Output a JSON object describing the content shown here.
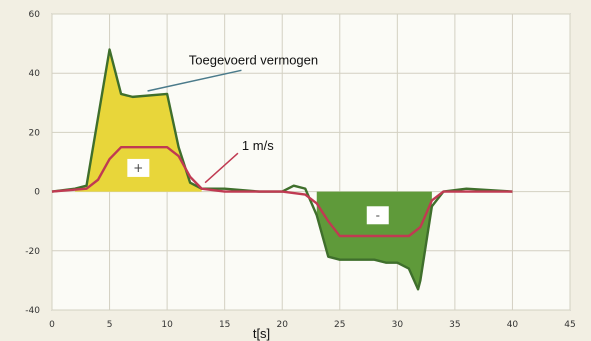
{
  "chart_data": {
    "type": "line",
    "xlabel": "t[s]",
    "ylabel": "",
    "xlim": [
      0,
      45
    ],
    "ylim": [
      -40,
      60
    ],
    "x_ticks": [
      "0",
      "5",
      "10",
      "15",
      "20",
      "25",
      "30",
      "35",
      "40",
      "45"
    ],
    "y_ticks": [
      "60",
      "40",
      "20",
      "0",
      "-20",
      "-40"
    ],
    "grid": true,
    "annotations": [
      {
        "text": "Toegevoerd vermogen",
        "x": 17.5,
        "y": 43
      },
      {
        "text": "1 m/s",
        "x": 16.5,
        "y": 14
      }
    ],
    "box_labels": [
      {
        "text": "+",
        "x": 7.5,
        "y": 8
      },
      {
        "text": "-",
        "x": 28.3,
        "y": -8
      }
    ],
    "series": [
      {
        "color": "#3f6f2c",
        "x": [
          0,
          2,
          3,
          5,
          6,
          7,
          10,
          11,
          12,
          13,
          15,
          18,
          20,
          21,
          22,
          23,
          24,
          25,
          26,
          27,
          28,
          29,
          30,
          31,
          31.8,
          32,
          33,
          34,
          36,
          40
        ],
        "y": [
          0,
          1,
          2,
          48,
          33,
          32,
          33,
          15,
          3,
          1,
          1,
          0,
          0,
          2,
          1,
          -8,
          -22,
          -23,
          -23,
          -23,
          -23,
          -24,
          -24,
          -26,
          -33,
          -30,
          -5,
          0,
          1,
          0
        ]
      },
      {
        "color": "#c03a52",
        "x": [
          0,
          3,
          4,
          5,
          6,
          8,
          10,
          11,
          12,
          13,
          15,
          18,
          20,
          22,
          23,
          24,
          25,
          27,
          29,
          31,
          32,
          33,
          34,
          36,
          40
        ],
        "y": [
          0,
          1,
          4,
          11,
          15,
          15,
          15,
          12,
          5,
          1,
          0,
          0,
          0,
          -1,
          -4,
          -10,
          -15,
          -15,
          -15,
          -15,
          -12,
          -3,
          0,
          0,
          0
        ]
      }
    ],
    "fills": [
      {
        "color": "#e8d63a",
        "x": [
          2,
          3,
          5,
          6,
          7,
          10,
          11,
          12,
          13
        ],
        "y": [
          1,
          2,
          48,
          33,
          32,
          33,
          15,
          3,
          1
        ]
      },
      {
        "color": "#5f9a3a",
        "x": [
          23,
          24,
          25,
          26,
          27,
          28,
          29,
          30,
          31,
          31.8,
          32,
          33
        ],
        "y": [
          -8,
          -22,
          -23,
          -23,
          -23,
          -23,
          -24,
          -24,
          -26,
          -33,
          -30,
          -5
        ]
      }
    ]
  }
}
